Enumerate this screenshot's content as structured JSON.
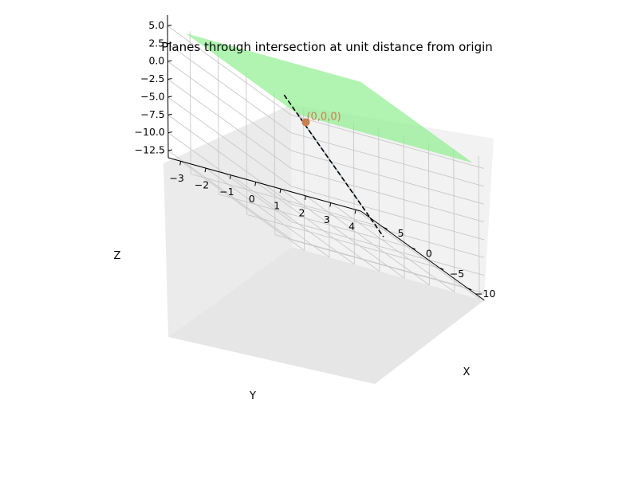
{
  "chart_data": {
    "type": "surface3d",
    "title": "Planes through intersection at unit distance from origin",
    "xlabel": "X",
    "ylabel": "Y",
    "zlabel": "Z",
    "xlim": [
      -13,
      9
    ],
    "ylim": [
      -3.5,
      4.2
    ],
    "zlim": [
      -13.5,
      6.5
    ],
    "x_ticks": [
      -10,
      -5,
      0,
      5
    ],
    "x_tick_labels": [
      "−10",
      "−5",
      "0",
      "5"
    ],
    "y_ticks": [
      -3,
      -2,
      -1,
      0,
      1,
      2,
      3,
      4
    ],
    "y_tick_labels": [
      "−3",
      "−2",
      "−1",
      "0",
      "1",
      "2",
      "3",
      "4"
    ],
    "z_ticks": [
      5.0,
      2.5,
      0.0,
      -2.5,
      -5.0,
      -7.5,
      -10.0,
      -12.5
    ],
    "z_tick_labels": [
      "5.0",
      "2.5",
      "0.0",
      "−2.5",
      "−5.0",
      "−7.5",
      "−10.0",
      "−12.5"
    ],
    "grid": true,
    "series": [
      {
        "kind": "plane",
        "color": "#90ee90",
        "alpha": 0.7,
        "corners": [
          [
            -12,
            -3,
            5
          ],
          [
            -12,
            4,
            5
          ],
          [
            8,
            4,
            5
          ],
          [
            8,
            -3,
            5
          ]
        ]
      },
      {
        "kind": "plane",
        "color": "#708090",
        "alpha": 0.5,
        "corners": [
          [
            -12,
            -3,
            5.2
          ],
          [
            -12,
            -3,
            4.8
          ],
          [
            8,
            4,
            -12.4
          ],
          [
            8,
            4,
            -12.1
          ]
        ]
      },
      {
        "kind": "line",
        "style": "dashed",
        "color": "#000000"
      },
      {
        "kind": "point",
        "color": "#c87f4f",
        "point": [
          0,
          0,
          0
        ],
        "label": "(0,0,0)"
      }
    ]
  }
}
